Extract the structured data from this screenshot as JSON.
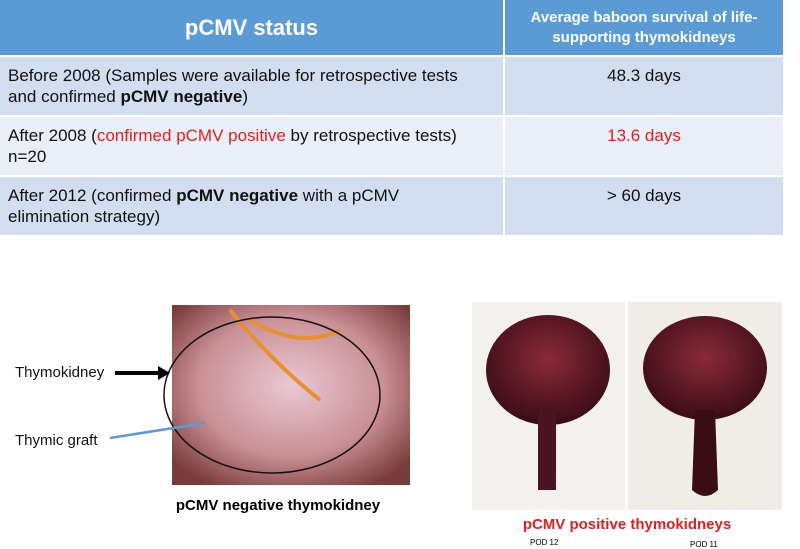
{
  "table": {
    "header": [
      "pCMV status",
      "Average baboon survival of life-supporting thymokidneys"
    ],
    "rows": [
      [
        [
          "Before 2008 (Samples were available for retrospective tests and confirmed ",
          "pCMV negative",
          ")"
        ],
        "48.3 days"
      ],
      [
        [
          "After 2008 (",
          "confirmed pCMV positive",
          " by retrospective tests) n=20"
        ],
        "13.6 days"
      ],
      [
        [
          "After 2012 (confirmed ",
          "pCMV negative",
          " with a pCMV elimination strategy)"
        ],
        "> 60 days"
      ]
    ]
  },
  "figures": {
    "left": {
      "labels": [
        "Thymokidney",
        "Thymic graft"
      ],
      "caption": "pCMV negative thymokidney"
    },
    "right": {
      "caption": "pCMV positive thymokidneys",
      "pods": [
        "POD 12",
        "POD 11"
      ]
    }
  }
}
